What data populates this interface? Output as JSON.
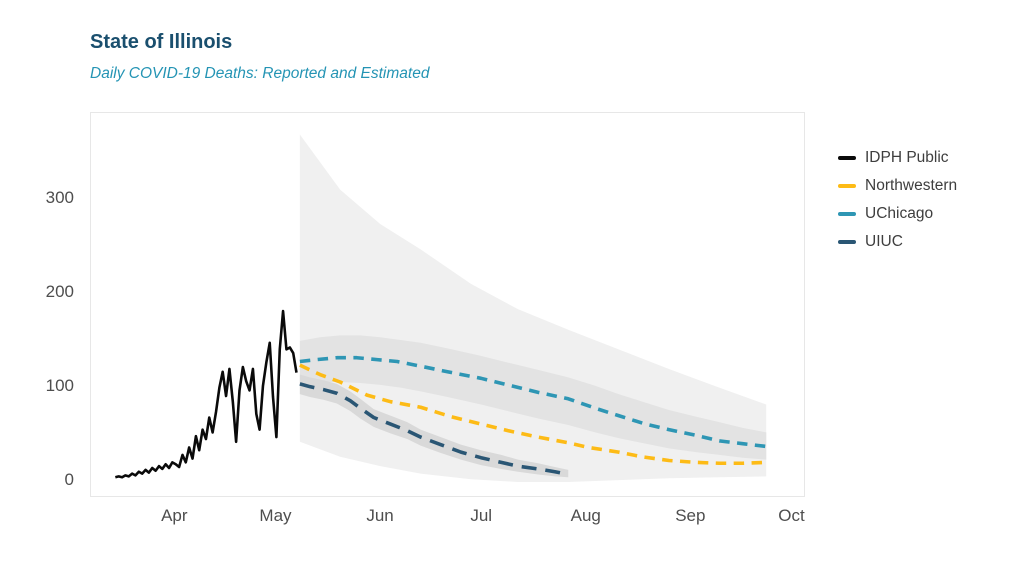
{
  "header": {
    "title": "State of Illinois",
    "subtitle": "Daily COVID-19 Deaths: Reported and Estimated",
    "title_color": "#1a4f6e",
    "subtitle_color": "#2494b4"
  },
  "axes": {
    "y_tick_labels": [
      "0",
      "100",
      "200",
      "300"
    ],
    "x_tick_labels": [
      "Apr",
      "May",
      "Jun",
      "Jul",
      "Aug",
      "Sep",
      "Oct"
    ],
    "tick_color": "#4e4e4e"
  },
  "chart_data": {
    "type": "line",
    "title": "State of Illinois",
    "subtitle": "Daily COVID-19 Deaths: Reported and Estimated",
    "xlabel": "",
    "ylabel": "",
    "x_unit": "days since Mar 1, 2020",
    "x_range": [
      6,
      218
    ],
    "y_range": [
      -18,
      392
    ],
    "grid": false,
    "legend_position": "right-outside",
    "y_ticks": [
      {
        "value": 0,
        "label": "0"
      },
      {
        "value": 100,
        "label": "100"
      },
      {
        "value": 200,
        "label": "200"
      },
      {
        "value": 300,
        "label": "300"
      }
    ],
    "x_ticks": [
      {
        "day": 31,
        "label": "Apr"
      },
      {
        "day": 61,
        "label": "May"
      },
      {
        "day": 92,
        "label": "Jun"
      },
      {
        "day": 122,
        "label": "Jul"
      },
      {
        "day": 153,
        "label": "Aug"
      },
      {
        "day": 184,
        "label": "Sep"
      },
      {
        "day": 214,
        "label": "Oct"
      }
    ],
    "bands": [
      {
        "name": "uchicago-outer-interval",
        "color": "#f0f0f0",
        "points": [
          [
            68,
            40,
            369
          ],
          [
            80,
            24,
            310
          ],
          [
            92,
            14,
            273
          ],
          [
            104,
            6,
            246
          ],
          [
            119,
            0,
            209
          ],
          [
            133,
            -3,
            182
          ],
          [
            148,
            -3,
            160
          ],
          [
            163,
            -1,
            139
          ],
          [
            178,
            1,
            118
          ],
          [
            193,
            2,
            98
          ],
          [
            207,
            3,
            80
          ]
        ]
      },
      {
        "name": "uchicago-inner-interval",
        "color": "#e3e3e3",
        "points": [
          [
            68,
            103,
            148
          ],
          [
            74,
            104,
            152
          ],
          [
            80,
            104,
            154
          ],
          [
            86,
            103,
            154
          ],
          [
            92,
            101,
            152
          ],
          [
            98,
            98,
            149
          ],
          [
            104,
            94,
            146
          ],
          [
            112,
            88,
            140
          ],
          [
            122,
            80,
            132
          ],
          [
            131,
            72,
            124
          ],
          [
            139,
            65,
            117
          ],
          [
            148,
            58,
            109
          ],
          [
            156,
            50,
            100
          ],
          [
            163,
            44,
            91
          ],
          [
            171,
            38,
            82
          ],
          [
            178,
            33,
            74
          ],
          [
            186,
            29,
            67
          ],
          [
            193,
            26,
            61
          ],
          [
            200,
            23,
            55
          ],
          [
            207,
            21,
            50
          ]
        ]
      },
      {
        "name": "uiuc-interval",
        "color": "#d9d9d9",
        "points": [
          [
            68,
            91,
            112
          ],
          [
            71,
            88,
            109
          ],
          [
            75,
            85,
            106
          ],
          [
            79,
            81,
            102
          ],
          [
            83,
            73,
            94
          ],
          [
            86,
            65,
            86
          ],
          [
            90,
            56,
            75
          ],
          [
            95,
            49,
            68
          ],
          [
            100,
            43,
            61
          ],
          [
            104,
            36,
            53
          ],
          [
            110,
            28,
            45
          ],
          [
            116,
            21,
            37
          ],
          [
            122,
            15,
            31
          ],
          [
            128,
            11,
            26
          ],
          [
            133,
            8,
            21
          ],
          [
            139,
            5,
            17
          ],
          [
            144,
            3,
            13
          ],
          [
            148,
            2,
            10
          ]
        ]
      }
    ],
    "series": [
      {
        "name": "IDPH Public",
        "color": "#0a0a0a",
        "style": "solid",
        "points": [
          [
            13,
            2
          ],
          [
            14,
            3
          ],
          [
            15,
            2
          ],
          [
            16,
            4
          ],
          [
            17,
            3
          ],
          [
            18,
            6
          ],
          [
            19,
            4
          ],
          [
            20,
            8
          ],
          [
            21,
            6
          ],
          [
            22,
            10
          ],
          [
            23,
            7
          ],
          [
            24,
            12
          ],
          [
            25,
            9
          ],
          [
            26,
            14
          ],
          [
            27,
            11
          ],
          [
            28,
            16
          ],
          [
            29,
            12
          ],
          [
            30,
            18
          ],
          [
            31,
            16
          ],
          [
            32,
            13
          ],
          [
            33,
            26
          ],
          [
            34,
            18
          ],
          [
            35,
            34
          ],
          [
            36,
            22
          ],
          [
            37,
            46
          ],
          [
            38,
            31
          ],
          [
            39,
            53
          ],
          [
            40,
            43
          ],
          [
            41,
            66
          ],
          [
            42,
            50
          ],
          [
            43,
            72
          ],
          [
            44,
            98
          ],
          [
            45,
            115
          ],
          [
            46,
            89
          ],
          [
            47,
            118
          ],
          [
            48,
            83
          ],
          [
            49,
            40
          ],
          [
            50,
            95
          ],
          [
            51,
            120
          ],
          [
            52,
            105
          ],
          [
            53,
            95
          ],
          [
            54,
            118
          ],
          [
            55,
            70
          ],
          [
            56,
            53
          ],
          [
            57,
            100
          ],
          [
            58,
            125
          ],
          [
            59,
            146
          ],
          [
            60,
            88
          ],
          [
            61,
            45
          ],
          [
            62,
            139
          ],
          [
            63,
            180
          ],
          [
            64,
            139
          ],
          [
            65,
            141
          ],
          [
            66,
            135
          ],
          [
            67,
            114
          ]
        ]
      },
      {
        "name": "Northwestern",
        "color": "#fdbb16",
        "style": "dashed",
        "points": [
          [
            68,
            122
          ],
          [
            74,
            112
          ],
          [
            80,
            104
          ],
          [
            88,
            90
          ],
          [
            95,
            83
          ],
          [
            104,
            77
          ],
          [
            113,
            67
          ],
          [
            122,
            59
          ],
          [
            130,
            52
          ],
          [
            139,
            45
          ],
          [
            148,
            39
          ],
          [
            154,
            34
          ],
          [
            163,
            29
          ],
          [
            170,
            24
          ],
          [
            178,
            20
          ],
          [
            186,
            18
          ],
          [
            193,
            17
          ],
          [
            200,
            17
          ],
          [
            207,
            18
          ]
        ]
      },
      {
        "name": "UChicago",
        "color": "#2e96b4",
        "style": "dashed",
        "points": [
          [
            68,
            126
          ],
          [
            73,
            128
          ],
          [
            79,
            130
          ],
          [
            85,
            130
          ],
          [
            91,
            128
          ],
          [
            97,
            126
          ],
          [
            104,
            121
          ],
          [
            112,
            115
          ],
          [
            122,
            108
          ],
          [
            131,
            100
          ],
          [
            139,
            93
          ],
          [
            148,
            86
          ],
          [
            156,
            76
          ],
          [
            163,
            68
          ],
          [
            171,
            59
          ],
          [
            178,
            53
          ],
          [
            186,
            47
          ],
          [
            193,
            41
          ],
          [
            200,
            38
          ],
          [
            207,
            35
          ]
        ]
      },
      {
        "name": "UIUC",
        "color": "#2a5674",
        "style": "long-dashed",
        "points": [
          [
            68,
            102
          ],
          [
            71,
            99
          ],
          [
            75,
            96
          ],
          [
            79,
            92
          ],
          [
            83,
            84
          ],
          [
            86,
            76
          ],
          [
            90,
            66
          ],
          [
            95,
            59
          ],
          [
            100,
            52
          ],
          [
            104,
            45
          ],
          [
            110,
            37
          ],
          [
            116,
            29
          ],
          [
            122,
            23
          ],
          [
            128,
            18
          ],
          [
            133,
            14
          ],
          [
            139,
            11
          ],
          [
            144,
            8
          ],
          [
            148,
            5
          ]
        ]
      }
    ],
    "legend": [
      {
        "label": "IDPH Public",
        "color": "#0a0a0a"
      },
      {
        "label": "Northwestern",
        "color": "#fdbb16"
      },
      {
        "label": "UChicago",
        "color": "#2e96b4"
      },
      {
        "label": "UIUC",
        "color": "#2a5674"
      }
    ]
  }
}
